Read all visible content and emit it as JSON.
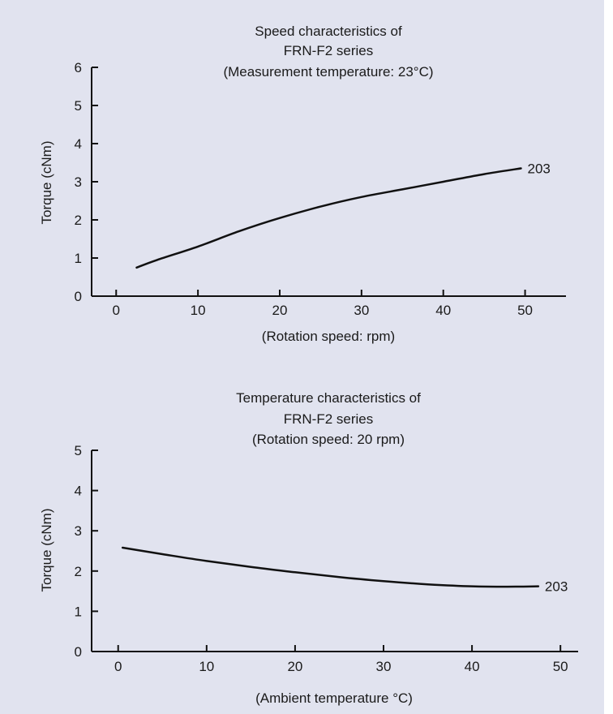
{
  "chart_data": [
    {
      "type": "line",
      "title_lines": [
        "Speed characteristics of",
        "FRN-F2 series",
        "(Measurement temperature: 23°C)"
      ],
      "xlabel": "(Rotation speed: rpm)",
      "ylabel": "Torque (cNm)",
      "x_ticks": [
        0,
        10,
        20,
        30,
        40,
        50
      ],
      "y_ticks": [
        0,
        1,
        2,
        3,
        4,
        5,
        6
      ],
      "xlim": [
        -3,
        55
      ],
      "ylim": [
        0,
        6
      ],
      "grid": false,
      "series": [
        {
          "name": "203",
          "x": [
            2.5,
            5,
            10,
            15,
            20,
            25,
            30,
            35,
            40,
            45,
            49.5
          ],
          "y": [
            0.75,
            0.95,
            1.3,
            1.7,
            2.05,
            2.35,
            2.6,
            2.8,
            3.0,
            3.2,
            3.35
          ]
        }
      ],
      "line_color": "#111111"
    },
    {
      "type": "line",
      "title_lines": [
        "Temperature characteristics of",
        "FRN-F2 series",
        "(Rotation speed: 20 rpm)"
      ],
      "xlabel": "(Ambient temperature °C)",
      "ylabel": "Torque (cNm)",
      "x_ticks": [
        0,
        10,
        20,
        30,
        40,
        50
      ],
      "y_ticks": [
        0,
        1,
        2,
        3,
        4,
        5
      ],
      "xlim": [
        -3,
        52
      ],
      "ylim": [
        0,
        5
      ],
      "grid": false,
      "series": [
        {
          "name": "203",
          "x": [
            0.5,
            5,
            10,
            15,
            20,
            25,
            30,
            35,
            40,
            44,
            47.5
          ],
          "y": [
            2.58,
            2.42,
            2.25,
            2.1,
            1.97,
            1.85,
            1.75,
            1.67,
            1.62,
            1.61,
            1.62
          ]
        }
      ],
      "line_color": "#111111"
    }
  ]
}
